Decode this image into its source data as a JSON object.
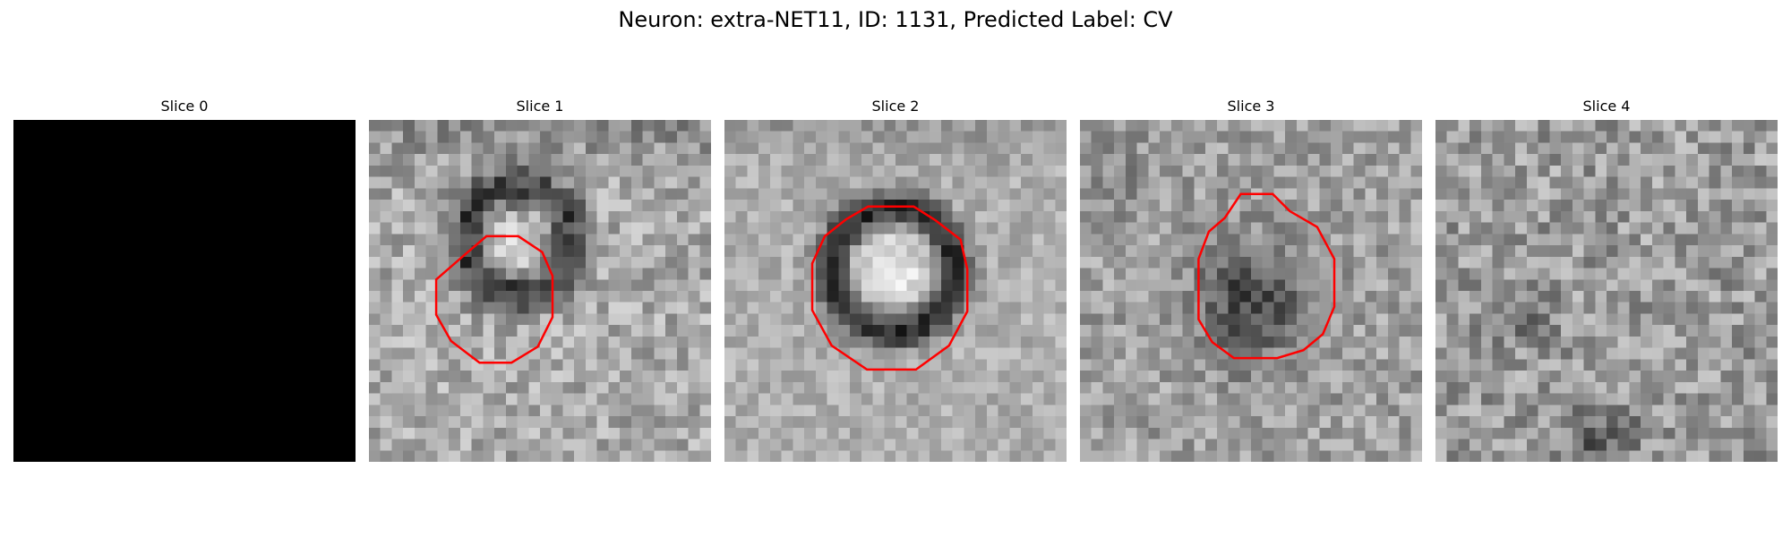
{
  "figure": {
    "title": "Neuron: extra-NET11, ID: 1131, Predicted Label: CV"
  },
  "panels": [
    {
      "title": "Slice 0",
      "content": "black",
      "roi": false
    },
    {
      "title": "Slice 1",
      "content": "ring",
      "roi": true
    },
    {
      "title": "Slice 2",
      "content": "ring",
      "roi": true
    },
    {
      "title": "Slice 3",
      "content": "dark-blob",
      "roi": true
    },
    {
      "title": "Slice 4",
      "content": "noise",
      "roi": false
    }
  ],
  "colors": {
    "roi_outline": "#ff0000",
    "background": "#ffffff"
  }
}
